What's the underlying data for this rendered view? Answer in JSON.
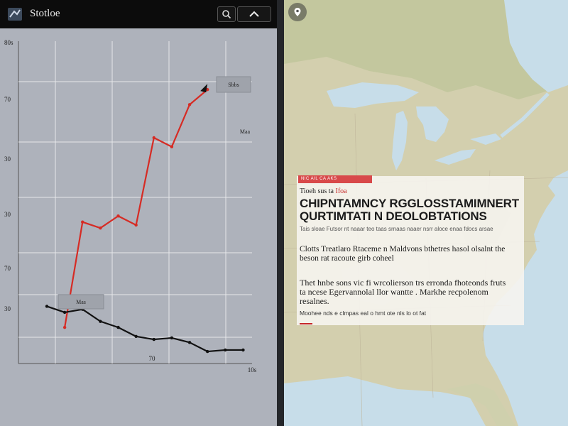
{
  "app": {
    "title": "Stotloe",
    "logo_icon": "app-logo-icon",
    "search_icon": "search-icon",
    "collapse_icon": "chevron-up-icon"
  },
  "chart": {
    "y_tick_labels": [
      "80s",
      "70",
      "30",
      "30",
      "70",
      "30"
    ],
    "x_tick_labels": [
      "70",
      "10s"
    ],
    "annotation_top": "Sbbs",
    "annotation_mid": "Maa",
    "annotation_low": "Mas"
  },
  "chart_data": {
    "type": "line",
    "title": "",
    "xlabel": "",
    "ylabel": "",
    "series": [
      {
        "color": "#d62b24",
        "x": [
          1,
          2,
          3,
          4,
          5,
          6,
          7,
          8,
          9
        ],
        "values": [
          12,
          47,
          45,
          49,
          46,
          75,
          72,
          86,
          91
        ]
      },
      {
        "color": "#111111",
        "x": [
          0,
          1,
          2,
          3,
          4,
          5,
          6,
          7,
          8,
          9,
          10,
          11
        ],
        "values": [
          19,
          17,
          18,
          14,
          12,
          9,
          8,
          8.5,
          7,
          4,
          4.5,
          4.5
        ]
      }
    ],
    "grid": true,
    "colors": {
      "background": "#aeb2bb",
      "grid": "#e6e7ea",
      "up_line": "#d62b24",
      "down_line": "#111111"
    }
  },
  "map": {
    "pin_icon": "map-pin-icon",
    "colors": {
      "water": "#c7dde9",
      "land": "#d6d3b4",
      "forest": "#b9c29a"
    }
  },
  "card": {
    "red_label": "NIC AIL CA AKS",
    "kicker_black": "Tioeh sus ta",
    "kicker_red": "Ifoa",
    "headline_line1": "CHIPNTAMNCY RGGLOSSTAMIMNERT",
    "headline_line2": "QURTIMTATI N DEOLOBTATIONS",
    "byline": "Tais sloae  Futsor nt naaar  teo taas srnaas naaer nsrr aloce  enaa  fdocs arsae",
    "para1": "Clotts Treatlaro Rtaceme n Maldvons bthetres hasol olsalnt the beson rat racoute girb coheel",
    "para2": "Thet hnbe sons vic fi wrcolierson trs erronda fhoteonds fruts ta ncese Egervannolal llor wantte . Markhe recpolenom resalnes.",
    "para3": "Moohee nds e clmpas  eal o  hmt  ote  nls  lo  ot  fat"
  }
}
